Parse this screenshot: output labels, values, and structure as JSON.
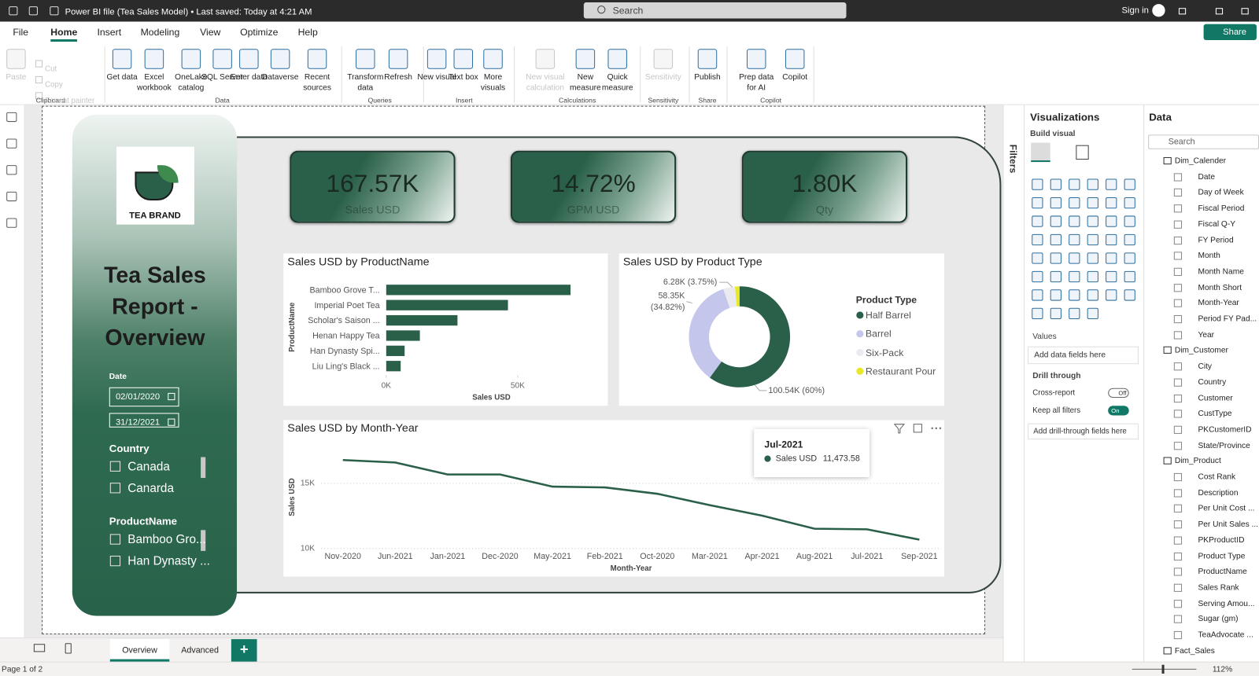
{
  "title_bar": {
    "file_title": "Power BI file (Tea Sales Model) • Last saved: Today at 4:21 AM",
    "search": "Search",
    "sign_in": "Sign in"
  },
  "menu": {
    "tabs": [
      "File",
      "Home",
      "Insert",
      "Modeling",
      "View",
      "Optimize",
      "Help"
    ],
    "active_tab": 1,
    "share": "Share"
  },
  "ribbon": {
    "groups": [
      {
        "label": "Clipboard",
        "items": [
          "Paste",
          "Cut",
          "Copy",
          "Format painter"
        ]
      },
      {
        "label": "Data",
        "items": [
          "Get data",
          "Excel workbook",
          "OneLake catalog",
          "SQL Server",
          "Enter data",
          "Dataverse",
          "Recent sources"
        ]
      },
      {
        "label": "Queries",
        "items": [
          "Transform data",
          "Refresh"
        ]
      },
      {
        "label": "Insert",
        "items": [
          "New visual",
          "Text box",
          "More visuals"
        ]
      },
      {
        "label": "Calculations",
        "items": [
          "New visual calculation",
          "New measure",
          "Quick measure"
        ]
      },
      {
        "label": "Sensitivity",
        "items": [
          "Sensitivity"
        ]
      },
      {
        "label": "Share",
        "items": [
          "Publish"
        ]
      },
      {
        "label": "Copilot",
        "items": [
          "Prep data for AI",
          "Copilot"
        ]
      }
    ]
  },
  "report": {
    "logo": "TEA BRAND",
    "title": "Tea Sales Report - Overview",
    "slicers": [
      {
        "label": "Date",
        "items": [
          "02/01/2020",
          "31/12/2021"
        ]
      },
      {
        "label": "Country",
        "items": [
          "Canada",
          "Canarda"
        ]
      },
      {
        "label": "ProductName",
        "items": [
          "Bamboo Gro...",
          "Han Dynasty ..."
        ]
      }
    ],
    "cards": [
      {
        "value": "167.57K",
        "label": "Sales USD"
      },
      {
        "value": "14.72%",
        "label": "GPM USD"
      },
      {
        "value": "1.80K",
        "label": "Qty"
      }
    ]
  },
  "chart_data": [
    {
      "type": "bar",
      "orientation": "horizontal",
      "title": "Sales USD by ProductName",
      "categories": [
        "Bamboo Grove T...",
        "Imperial Poet Tea",
        "Scholar's Saison ...",
        "Henan Happy Tea",
        "Han Dynasty Spi...",
        "Liu Ling's Black ..."
      ],
      "values": [
        70100,
        46300,
        27100,
        12800,
        7000,
        5500
      ],
      "color": "#2a6049",
      "xlim": [
        0,
        80000
      ],
      "xticks": [
        {
          "value": 0,
          "label": "0K"
        },
        {
          "value": 50000,
          "label": "50K"
        }
      ],
      "x_label": "Sales USD",
      "y_label": "ProductName"
    },
    {
      "type": "donut",
      "title": "Sales USD by Product Type",
      "legend_title": "Product Type",
      "categories": [
        "Half Barrel",
        "Barrel",
        "Six-Pack",
        "Restaurant Pour"
      ],
      "values": [
        100540,
        58350,
        6280,
        2400
      ],
      "value_labels": [
        "100.54K (60%)",
        "58.35K (34.82%)",
        "6.28K (3.75%)",
        null
      ],
      "colors": [
        "#2a6049",
        "#c4c6ec",
        "#eaeaf0",
        "#e8e82a"
      ]
    },
    {
      "type": "line",
      "title": "Sales USD by Month-Year",
      "categories": [
        "Nov-2020",
        "Jun-2021",
        "Jan-2021",
        "Dec-2020",
        "May-2021",
        "Feb-2021",
        "Oct-2020",
        "Mar-2021",
        "Apr-2021",
        "Aug-2021",
        "Jul-2021",
        "Sep-2021"
      ],
      "values": [
        16790,
        16600,
        15680,
        15680,
        14750,
        14690,
        14200,
        13330,
        12520,
        11520,
        11473.58,
        10680
      ],
      "color": "#2a6049",
      "ylim": [
        10000,
        18000
      ],
      "yticks": [
        {
          "value": 10000,
          "label": "10K"
        },
        {
          "value": 15000,
          "label": "15K"
        }
      ],
      "grid": true,
      "x_label": "Month-Year",
      "y_label": "Sales USD",
      "tooltip": {
        "title": "Jul-2021",
        "series": "Sales USD",
        "value_label": "11,473.58"
      }
    }
  ],
  "filters": "Filters",
  "visualizations": {
    "title": "Visualizations",
    "build": "Build visual",
    "values": "Values",
    "add_fields": "Add data fields here",
    "drill": "Drill through",
    "cross_report": "Cross-report",
    "cross_state": "Off",
    "keep_filters": "Keep all filters",
    "keep_state": "On",
    "add_drill": "Add drill-through fields here"
  },
  "data_pane": {
    "title": "Data",
    "search": "Search",
    "tables": [
      {
        "name": "Dim_Calender",
        "fields": [
          "Date",
          "Day of Week",
          "Fiscal Period",
          "Fiscal Q-Y",
          "FY Period",
          "Month",
          "Month Name",
          "Month Short",
          "Month-Year",
          "Period FY Pad...",
          "Year"
        ]
      },
      {
        "name": "Dim_Customer",
        "fields": [
          "City",
          "Country",
          "Customer",
          "CustType",
          "PKCustomerID",
          "State/Province"
        ]
      },
      {
        "name": "Dim_Product",
        "fields": [
          "Cost Rank",
          "Description",
          "Per Unit Cost ...",
          "Per Unit Sales ...",
          "PKProductID",
          "Product Type",
          "ProductName",
          "Sales Rank",
          "Serving Amou...",
          "Sugar (gm)",
          "TeaAdvocate ..."
        ]
      },
      {
        "name": "Fact_Sales",
        "fields": []
      }
    ]
  },
  "pages": {
    "tabs": [
      "Overview",
      "Advanced"
    ],
    "active": 0,
    "add": "+"
  },
  "status": {
    "page": "Page 1 of 2",
    "zoom": "112%"
  }
}
